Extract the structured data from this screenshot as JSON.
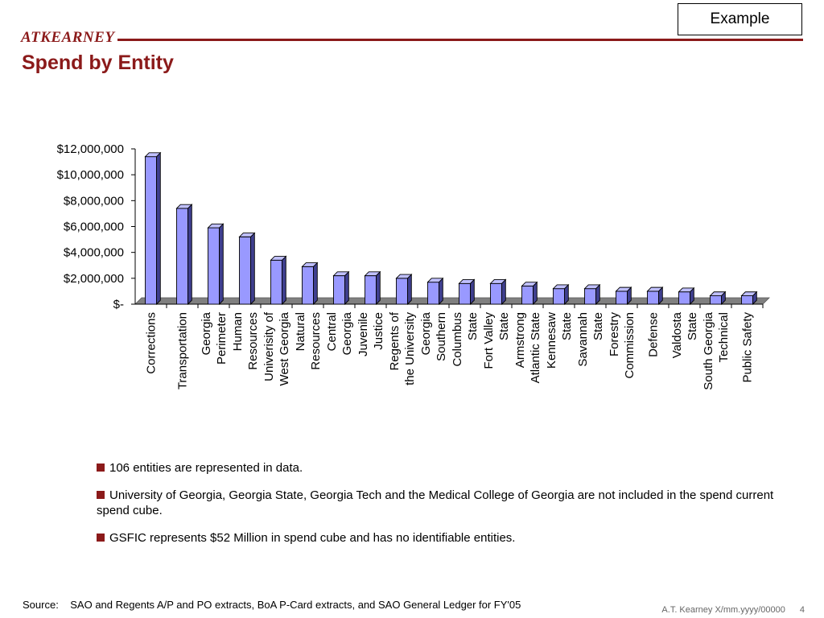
{
  "header": {
    "logo_text": "ATKEARNEY",
    "example_label": "Example",
    "title": "Spend by Entity"
  },
  "colors": {
    "brand": "#8b1a1a",
    "bar_front": "#9999ff",
    "bar_top": "#c0c0ff",
    "bar_side": "#3f3f8f",
    "floor": "#808080"
  },
  "chart_data": {
    "type": "bar",
    "style": "3d-column",
    "categories": [
      "Corrections",
      "Transportation",
      "Georgia\nPerimeter",
      "Human\nResources",
      "Univerisity of\nWest Georgia",
      "Natural\nResources",
      "Central\nGeorgia",
      "Juvenile\nJustice",
      "Regents of\nthe University",
      "Georgia\nSouthern",
      "Columbus\nState",
      "Fort Valley\nState",
      "Armstrong\nAtlantic State",
      "Kennesaw\nState",
      "Savannah\nState",
      "Forestry\nCommission",
      "Defense",
      "Valdosta\nState",
      "South Georgia\nTechnical",
      "Public Safety"
    ],
    "values": [
      11400000,
      7400000,
      5900000,
      5200000,
      3400000,
      2900000,
      2200000,
      2200000,
      2000000,
      1700000,
      1600000,
      1600000,
      1400000,
      1200000,
      1200000,
      1000000,
      1000000,
      950000,
      650000,
      650000
    ],
    "y_ticks": [
      "$-",
      "$2,000,000",
      "$4,000,000",
      "$6,000,000",
      "$8,000,000",
      "$10,000,000",
      "$12,000,000"
    ],
    "ylim": [
      0,
      12000000
    ],
    "title": "",
    "xlabel": "",
    "ylabel": "",
    "grid": false,
    "legend": "none"
  },
  "bullets": [
    "106 entities are represented in data.",
    "University of Georgia, Georgia State, Georgia Tech and the Medical College of Georgia are not included in the spend current spend cube.",
    "GSFIC represents $52 Million in spend cube and has no identifiable entities."
  ],
  "footer": {
    "source_label": "Source:",
    "source_text": "SAO and Regents A/P and PO extracts, BoA P-Card extracts, and SAO General Ledger for FY'05",
    "doc_ref": "A.T. Kearney X/mm.yyyy/00000",
    "page_number": "4"
  }
}
